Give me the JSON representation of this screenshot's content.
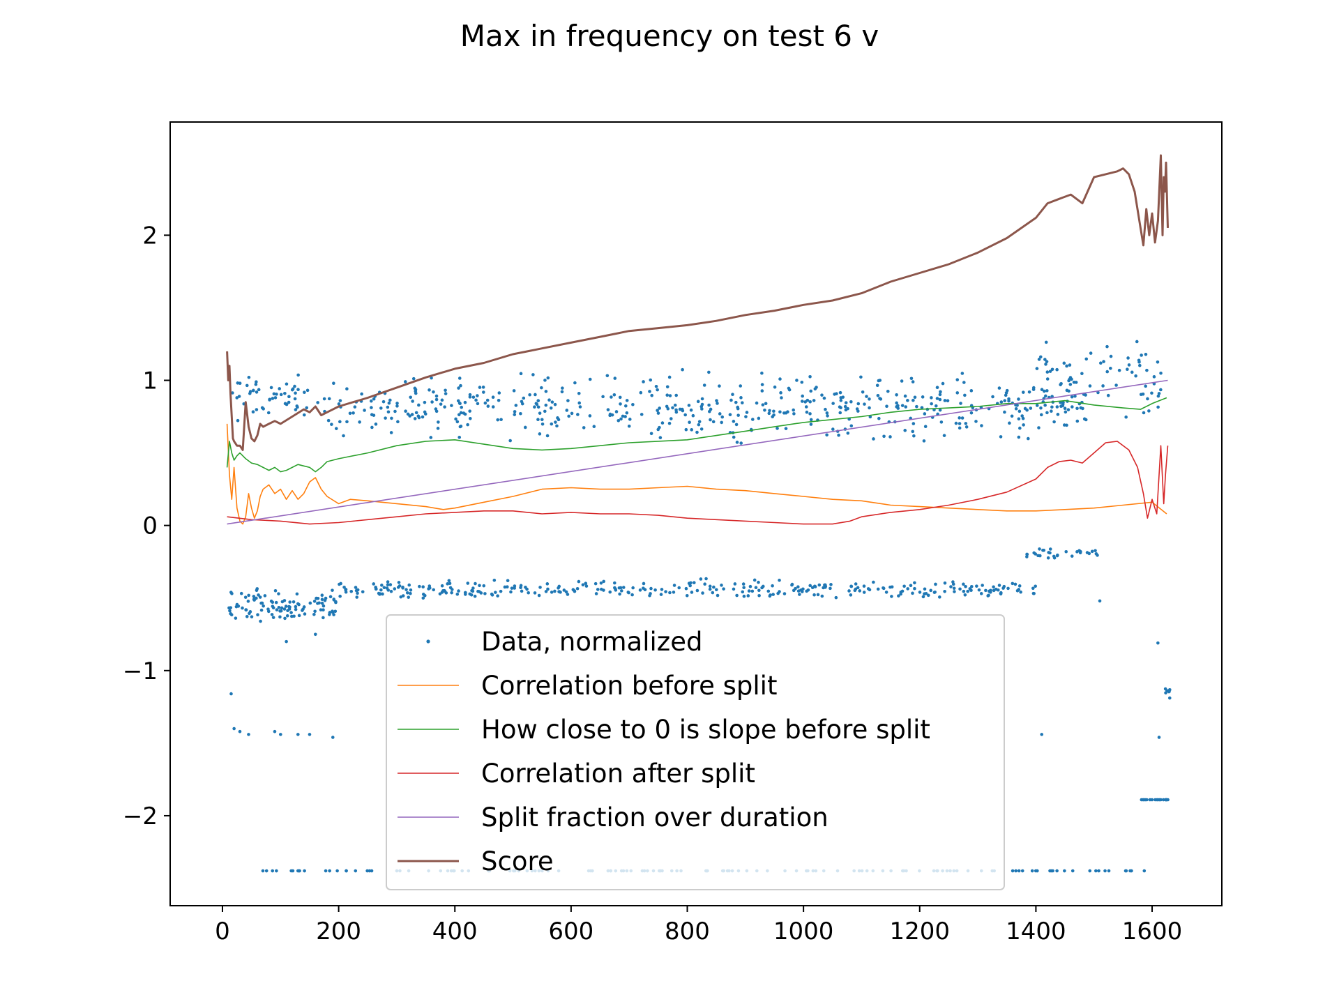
{
  "chart_data": {
    "type": "line",
    "title": "Max in frequency on test 6 v",
    "xlabel": "",
    "ylabel": "",
    "xlim": [
      -90,
      1720
    ],
    "ylim": [
      -2.62,
      2.78
    ],
    "xticks": [
      0,
      200,
      400,
      600,
      800,
      1000,
      1200,
      1400,
      1600
    ],
    "yticks": [
      -2,
      -1,
      0,
      1,
      2
    ],
    "ytick_labels": [
      "−2",
      "−1",
      "0",
      "1",
      "2"
    ],
    "grid": false,
    "legend_placement": "lower-center",
    "legend": [
      {
        "name": "Data, normalized",
        "style": "dot",
        "color": "#1f77b4"
      },
      {
        "name": "Correlation before split",
        "style": "line",
        "color": "#ff7f0e"
      },
      {
        "name": "How close to 0 is slope before split",
        "style": "line",
        "color": "#2ca02c"
      },
      {
        "name": "Correlation after split",
        "style": "line",
        "color": "#d62728"
      },
      {
        "name": "Split fraction over duration",
        "style": "line",
        "color": "#9467bd"
      },
      {
        "name": "Score",
        "style": "thick-line",
        "color": "#8c564b"
      }
    ],
    "series": [
      {
        "name": "Correlation before split",
        "color": "#ff7f0e",
        "x": [
          8,
          12,
          16,
          20,
          25,
          30,
          35,
          40,
          45,
          50,
          55,
          60,
          65,
          70,
          80,
          90,
          100,
          110,
          120,
          130,
          140,
          150,
          160,
          170,
          180,
          200,
          220,
          250,
          300,
          350,
          380,
          400,
          450,
          500,
          550,
          600,
          650,
          700,
          750,
          800,
          850,
          900,
          950,
          1000,
          1050,
          1100,
          1150,
          1200,
          1250,
          1300,
          1350,
          1400,
          1450,
          1500,
          1550,
          1600,
          1625
        ],
        "y": [
          0.7,
          0.35,
          0.18,
          0.4,
          0.12,
          0.03,
          0.01,
          0.06,
          0.22,
          0.12,
          0.05,
          0.1,
          0.2,
          0.25,
          0.28,
          0.22,
          0.25,
          0.18,
          0.24,
          0.18,
          0.22,
          0.3,
          0.33,
          0.25,
          0.2,
          0.15,
          0.18,
          0.17,
          0.15,
          0.13,
          0.11,
          0.12,
          0.16,
          0.2,
          0.25,
          0.26,
          0.25,
          0.25,
          0.26,
          0.27,
          0.25,
          0.24,
          0.22,
          0.2,
          0.18,
          0.17,
          0.14,
          0.13,
          0.12,
          0.11,
          0.1,
          0.1,
          0.11,
          0.12,
          0.14,
          0.16,
          0.08
        ]
      },
      {
        "name": "How close to 0 is slope before split",
        "color": "#2ca02c",
        "x": [
          8,
          12,
          16,
          20,
          25,
          30,
          40,
          50,
          60,
          70,
          80,
          90,
          100,
          110,
          120,
          130,
          140,
          150,
          160,
          170,
          180,
          200,
          250,
          300,
          350,
          400,
          450,
          500,
          550,
          600,
          650,
          700,
          750,
          800,
          850,
          900,
          950,
          1000,
          1050,
          1100,
          1150,
          1200,
          1250,
          1300,
          1350,
          1400,
          1450,
          1500,
          1550,
          1580,
          1600,
          1625
        ],
        "y": [
          0.4,
          0.58,
          0.5,
          0.45,
          0.48,
          0.5,
          0.46,
          0.43,
          0.42,
          0.4,
          0.38,
          0.4,
          0.37,
          0.38,
          0.4,
          0.42,
          0.41,
          0.4,
          0.37,
          0.4,
          0.44,
          0.46,
          0.5,
          0.55,
          0.58,
          0.59,
          0.56,
          0.53,
          0.52,
          0.53,
          0.55,
          0.57,
          0.58,
          0.59,
          0.62,
          0.65,
          0.68,
          0.71,
          0.73,
          0.75,
          0.78,
          0.8,
          0.81,
          0.82,
          0.84,
          0.84,
          0.86,
          0.83,
          0.81,
          0.8,
          0.84,
          0.88
        ]
      },
      {
        "name": "Correlation after split",
        "color": "#d62728",
        "x": [
          8,
          50,
          100,
          150,
          200,
          250,
          300,
          350,
          400,
          450,
          500,
          550,
          600,
          650,
          700,
          750,
          800,
          850,
          900,
          950,
          1000,
          1050,
          1080,
          1100,
          1150,
          1200,
          1250,
          1300,
          1350,
          1400,
          1420,
          1440,
          1460,
          1480,
          1500,
          1520,
          1540,
          1560,
          1575,
          1585,
          1592,
          1600,
          1608,
          1615,
          1620,
          1623,
          1627
        ],
        "y": [
          0.06,
          0.04,
          0.03,
          0.01,
          0.02,
          0.04,
          0.06,
          0.08,
          0.09,
          0.1,
          0.1,
          0.08,
          0.09,
          0.08,
          0.08,
          0.07,
          0.05,
          0.04,
          0.03,
          0.02,
          0.01,
          0.01,
          0.03,
          0.06,
          0.09,
          0.11,
          0.14,
          0.18,
          0.23,
          0.32,
          0.4,
          0.44,
          0.45,
          0.43,
          0.5,
          0.57,
          0.58,
          0.52,
          0.4,
          0.22,
          0.05,
          0.18,
          0.08,
          0.55,
          0.15,
          0.35,
          0.55
        ]
      },
      {
        "name": "Split fraction over duration",
        "color": "#9467bd",
        "x": [
          8,
          1627
        ],
        "y": [
          0.01,
          1.0
        ]
      },
      {
        "name": "Score",
        "color": "#8c564b",
        "x": [
          8,
          10,
          12,
          14,
          16,
          18,
          20,
          25,
          30,
          35,
          40,
          45,
          50,
          55,
          60,
          65,
          70,
          80,
          90,
          100,
          120,
          140,
          150,
          160,
          170,
          180,
          200,
          250,
          300,
          350,
          400,
          450,
          500,
          550,
          600,
          650,
          700,
          750,
          800,
          850,
          900,
          950,
          1000,
          1050,
          1100,
          1150,
          1200,
          1250,
          1300,
          1350,
          1400,
          1420,
          1440,
          1460,
          1480,
          1500,
          1520,
          1540,
          1550,
          1560,
          1570,
          1580,
          1585,
          1590,
          1595,
          1600,
          1605,
          1610,
          1615,
          1618,
          1620,
          1622,
          1624,
          1627
        ],
        "y": [
          1.2,
          1.0,
          1.1,
          0.9,
          0.75,
          0.6,
          0.58,
          0.55,
          0.55,
          0.52,
          0.85,
          0.68,
          0.6,
          0.58,
          0.62,
          0.7,
          0.68,
          0.7,
          0.72,
          0.7,
          0.75,
          0.8,
          0.78,
          0.82,
          0.76,
          0.78,
          0.82,
          0.88,
          0.95,
          1.02,
          1.08,
          1.12,
          1.18,
          1.22,
          1.26,
          1.3,
          1.34,
          1.36,
          1.38,
          1.41,
          1.45,
          1.48,
          1.52,
          1.55,
          1.6,
          1.68,
          1.74,
          1.8,
          1.88,
          1.98,
          2.12,
          2.22,
          2.25,
          2.28,
          2.22,
          2.4,
          2.42,
          2.44,
          2.46,
          2.42,
          2.3,
          2.05,
          1.93,
          2.18,
          2.0,
          2.15,
          1.95,
          2.1,
          2.55,
          2.0,
          2.4,
          2.3,
          2.5,
          2.05
        ]
      }
    ],
    "scatter": {
      "name": "Data, normalized",
      "color": "#1f77b4",
      "bands": [
        {
          "x_start": 10,
          "x_end": 180,
          "y_center": 0.88,
          "y_spread": 0.1,
          "count": 55
        },
        {
          "x_start": 180,
          "x_end": 1500,
          "y_center": 0.82,
          "y_spread": 0.14,
          "count": 520
        },
        {
          "x_start": 1400,
          "x_end": 1620,
          "y_center": 0.98,
          "y_spread": 0.18,
          "count": 70
        },
        {
          "x_start": 10,
          "x_end": 200,
          "y_center": -0.56,
          "y_spread": 0.08,
          "count": 110
        },
        {
          "x_start": 200,
          "x_end": 1400,
          "y_center": -0.44,
          "y_spread": 0.04,
          "count": 330
        },
        {
          "x_start": 1380,
          "x_end": 1510,
          "y_center": -0.19,
          "y_spread": 0.03,
          "count": 30
        },
        {
          "x_start": 40,
          "x_end": 1620,
          "y_center": -2.38,
          "y_spread": 0.0,
          "count": 130
        },
        {
          "x_start": 1580,
          "x_end": 1630,
          "y_center": -1.89,
          "y_spread": 0.0,
          "count": 18
        },
        {
          "x_start": 1620,
          "x_end": 1632,
          "y_center": -1.14,
          "y_spread": 0.03,
          "count": 8
        }
      ],
      "extra_points": [
        [
          15,
          -1.16
        ],
        [
          20,
          -1.4
        ],
        [
          30,
          -1.42
        ],
        [
          45,
          -1.44
        ],
        [
          90,
          -1.42
        ],
        [
          100,
          -1.44
        ],
        [
          130,
          -1.44
        ],
        [
          150,
          -1.44
        ],
        [
          190,
          -1.46
        ],
        [
          1410,
          -1.44
        ],
        [
          1610,
          -0.81
        ],
        [
          1612,
          -1.46
        ],
        [
          1510,
          -0.52
        ],
        [
          110,
          -0.8
        ],
        [
          160,
          -0.75
        ]
      ]
    }
  }
}
